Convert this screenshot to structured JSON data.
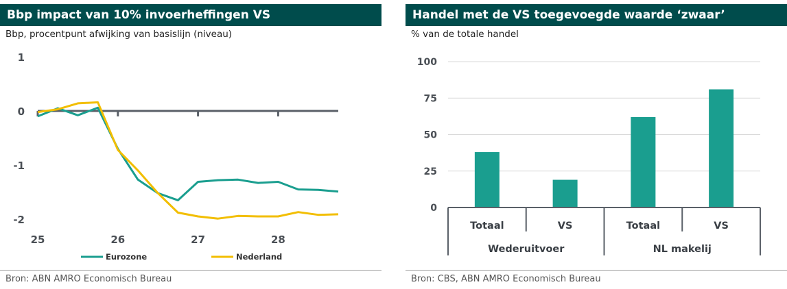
{
  "left": {
    "title": "Bbp impact van 10% invoerheffingen VS",
    "subtitle": "Bbp, procentpunt afwijking van basislijn (niveau)",
    "source": "Bron: ABN AMRO Economisch Bureau"
  },
  "right": {
    "title": "Handel met de VS toegevoegde waarde ‘zwaar’",
    "subtitle": "% van de totale handel",
    "source": "Bron: CBS, ABN AMRO Economisch Bureau"
  },
  "colors": {
    "teal": "#1a9e8f",
    "yellow": "#f2be00",
    "header": "#004c4c",
    "axis": "#5a6068"
  },
  "chart_data": [
    {
      "type": "line",
      "title": "Bbp impact van 10% invoerheffingen VS",
      "ylabel": "Bbp, procentpunt afwijking van basislijn (niveau)",
      "ylim": [
        -2.2,
        1
      ],
      "xlim": [
        25,
        28.75
      ],
      "x_ticks": [
        25,
        26,
        27,
        28
      ],
      "x_tick_labels": [
        "25",
        "26",
        "27",
        "28"
      ],
      "y_ticks": [
        1,
        0,
        -1,
        -2
      ],
      "y_tick_labels": [
        "1",
        "0",
        "-1",
        "-2"
      ],
      "grid": false,
      "legend": "bottom",
      "x": [
        25,
        25.25,
        25.5,
        25.75,
        26,
        26.25,
        26.5,
        26.75,
        27,
        27.25,
        27.5,
        27.75,
        28,
        28.25,
        28.5,
        28.75
      ],
      "series": [
        {
          "name": "Eurozone",
          "color": "#1a9e8f",
          "values": [
            -0.1,
            0.05,
            -0.08,
            0.06,
            -0.7,
            -1.27,
            -1.52,
            -1.65,
            -1.31,
            -1.28,
            -1.27,
            -1.33,
            -1.31,
            -1.45,
            -1.46,
            -1.49
          ]
        },
        {
          "name": "Nederland",
          "color": "#f2be00",
          "values": [
            -0.02,
            0.03,
            0.14,
            0.16,
            -0.72,
            -1.1,
            -1.52,
            -1.88,
            -1.95,
            -1.99,
            -1.94,
            -1.95,
            -1.95,
            -1.87,
            -1.92,
            -1.91
          ]
        }
      ]
    },
    {
      "type": "bar",
      "title": "Handel met de VS toegevoegde waarde ‘zwaar’",
      "ylabel": "% van de totale handel",
      "ylim": [
        0,
        100
      ],
      "y_ticks": [
        0,
        25,
        50,
        75,
        100
      ],
      "y_tick_labels": [
        "0",
        "25",
        "50",
        "75",
        "100"
      ],
      "grid": true,
      "categories": [
        "Totaal",
        "VS",
        "Totaal",
        "VS"
      ],
      "groups": [
        {
          "label": "Wederuitvoer",
          "span": 2
        },
        {
          "label": "NL makelij",
          "span": 2
        }
      ],
      "values": [
        38,
        19,
        62,
        81
      ],
      "color": "#1a9e8f"
    }
  ]
}
